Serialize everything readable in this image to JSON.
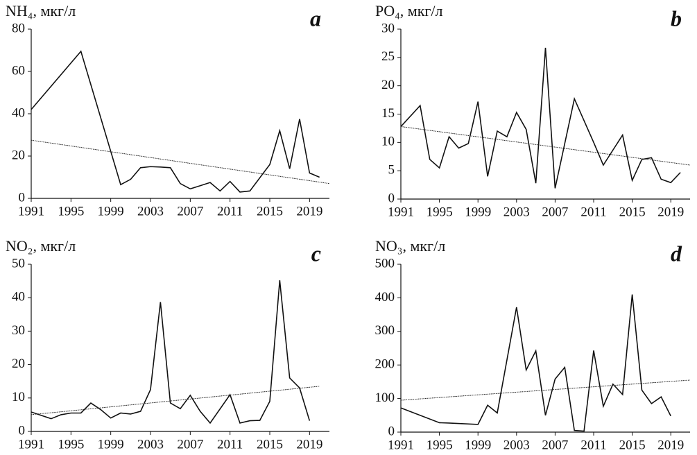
{
  "chart_data": [
    {
      "type": "line",
      "title": "NH₄, мкг/л",
      "annotation": "a",
      "x": [
        1991,
        1996,
        2000,
        2001,
        2002,
        2003,
        2004,
        2005,
        2006,
        2007,
        2008,
        2009,
        2010,
        2011,
        2012,
        2013,
        2015,
        2016,
        2017,
        2018,
        2019,
        2020
      ],
      "values": [
        42,
        69.5,
        6.5,
        9,
        14.5,
        15,
        14.8,
        14.5,
        7,
        4.5,
        6,
        7.5,
        3.5,
        8,
        3,
        3.5,
        16,
        32,
        14,
        37.5,
        12,
        10
      ],
      "trend": {
        "x": [
          1991,
          2021
        ],
        "values": [
          27.5,
          7
        ]
      },
      "color": "#111111",
      "xlim": [
        1991,
        2021
      ],
      "xticks": [
        1991,
        1995,
        1999,
        2003,
        2007,
        2011,
        2015,
        2019
      ],
      "ylim": [
        0,
        80
      ],
      "yticks": [
        0,
        20,
        40,
        60,
        80
      ]
    },
    {
      "type": "line",
      "title": "PO₄, мкг/л",
      "annotation": "b",
      "x": [
        1991,
        1993,
        1994,
        1995,
        1996,
        1997,
        1998,
        1999,
        2000,
        2001,
        2002,
        2003,
        2004,
        2005,
        2006,
        2007,
        2009,
        2011,
        2012,
        2014,
        2015,
        2016,
        2017,
        2018,
        2019,
        2020
      ],
      "values": [
        12.8,
        16.5,
        7,
        5.5,
        11,
        9,
        9.8,
        17.2,
        4,
        12,
        11,
        15.3,
        12.3,
        2.8,
        26.7,
        1.9,
        17.7,
        10,
        6,
        11.3,
        3.3,
        7,
        7.3,
        3.5,
        2.9,
        4.7
      ],
      "trend": {
        "x": [
          1991,
          2021
        ],
        "values": [
          12.8,
          6
        ]
      },
      "color": "#111111",
      "xlim": [
        1991,
        2021
      ],
      "xticks": [
        1991,
        1995,
        1999,
        2003,
        2007,
        2011,
        2015,
        2019
      ],
      "ylim": [
        0,
        30
      ],
      "yticks": [
        0,
        5,
        10,
        15,
        20,
        25,
        30
      ]
    },
    {
      "type": "line",
      "title": "NO₂, мкг/л",
      "annotation": "c",
      "x": [
        1991,
        1993,
        1994,
        1995,
        1996,
        1997,
        1998,
        1999,
        2000,
        2001,
        2002,
        2003,
        2004,
        2005,
        2006,
        2007,
        2008,
        2009,
        2011,
        2012,
        2013,
        2014,
        2015,
        2016,
        2017,
        2018,
        2019
      ],
      "values": [
        5.8,
        3.8,
        5,
        5.5,
        5.5,
        8.5,
        6.5,
        4,
        5.5,
        5.2,
        6,
        12.5,
        38.7,
        8.5,
        6.8,
        10.8,
        6,
        2.5,
        11,
        2.5,
        3.2,
        3.3,
        9,
        45.2,
        16,
        13,
        3.2
      ],
      "trend": {
        "x": [
          1991,
          2020
        ],
        "values": [
          5,
          13.5
        ]
      },
      "color": "#111111",
      "xlim": [
        1991,
        2021
      ],
      "xticks": [
        1991,
        1995,
        1999,
        2003,
        2007,
        2011,
        2015,
        2019
      ],
      "ylim": [
        0,
        50
      ],
      "yticks": [
        0,
        10,
        20,
        30,
        40,
        50
      ]
    },
    {
      "type": "line",
      "title": "NO₃, мкг/л",
      "annotation": "d",
      "x": [
        1991,
        1995,
        1996,
        1999,
        2000,
        2001,
        2003,
        2004,
        2005,
        2006,
        2007,
        2008,
        2009,
        2010,
        2011,
        2012,
        2013,
        2014,
        2015,
        2016,
        2017,
        2018,
        2019
      ],
      "values": [
        72,
        28,
        27,
        23,
        80,
        57,
        372,
        185,
        242,
        50,
        158,
        193,
        5,
        3,
        243,
        77,
        143,
        112,
        410,
        125,
        85,
        105,
        48
      ],
      "trend": {
        "x": [
          1991,
          2021
        ],
        "values": [
          95,
          155
        ]
      },
      "color": "#111111",
      "xlim": [
        1991,
        2021
      ],
      "xticks": [
        1991,
        1995,
        1999,
        2003,
        2007,
        2011,
        2015,
        2019
      ],
      "ylim": [
        0,
        500
      ],
      "yticks": [
        0,
        100,
        200,
        300,
        400,
        500
      ]
    }
  ]
}
